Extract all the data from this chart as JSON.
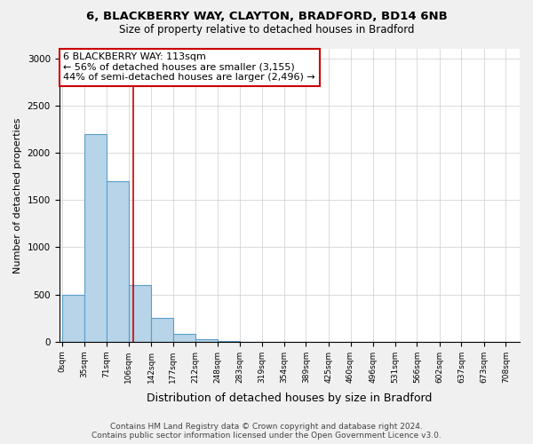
{
  "title_line1": "6, BLACKBERRY WAY, CLAYTON, BRADFORD, BD14 6NB",
  "title_line2": "Size of property relative to detached houses in Bradford",
  "xlabel": "Distribution of detached houses by size in Bradford",
  "ylabel": "Number of detached properties",
  "bar_color": "#b8d4e8",
  "bar_edge_color": "#5a9ec9",
  "bar_edge_width": 0.8,
  "vline_color": "#cc0000",
  "vline_x": 113,
  "annotation_line1": "6 BLACKBERRY WAY: 113sqm",
  "annotation_line2": "← 56% of detached houses are smaller (3,155)",
  "annotation_line3": "44% of semi-detached houses are larger (2,496) →",
  "annotation_box_color": "white",
  "annotation_box_edge_color": "#cc0000",
  "footnote": "Contains HM Land Registry data © Crown copyright and database right 2024.\nContains public sector information licensed under the Open Government Licence v3.0.",
  "bins": [
    0,
    35,
    71,
    106,
    142,
    177,
    212,
    248,
    283,
    319,
    354,
    389,
    425,
    460,
    496,
    531,
    566,
    602,
    637,
    673,
    708
  ],
  "counts": [
    500,
    2200,
    1700,
    600,
    250,
    80,
    30,
    5,
    2,
    1,
    1,
    0,
    0,
    1,
    0,
    0,
    0,
    0,
    0,
    0
  ],
  "ylim": [
    0,
    3100
  ],
  "yticks": [
    0,
    500,
    1000,
    1500,
    2000,
    2500,
    3000
  ],
  "xlim": [
    -5,
    730
  ],
  "background_color": "#f0f0f0",
  "plot_bg_color": "#ffffff",
  "grid_color": "#cccccc",
  "title1_fontsize": 9.5,
  "title2_fontsize": 8.5,
  "ylabel_fontsize": 8,
  "xlabel_fontsize": 9,
  "tick_fontsize": 6.5,
  "footnote_fontsize": 6.5,
  "annotation_fontsize": 8
}
